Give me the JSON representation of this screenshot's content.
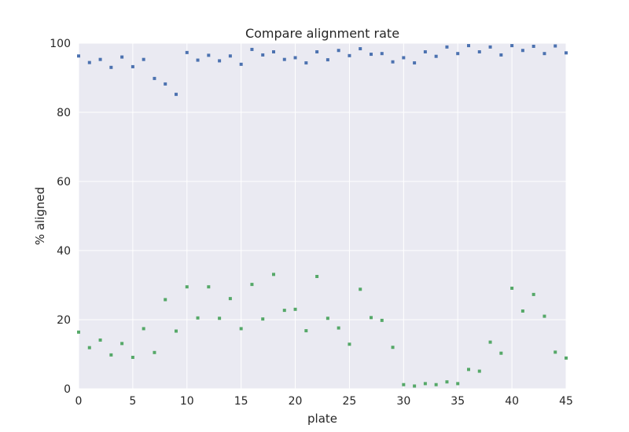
{
  "chart_data": {
    "type": "scatter",
    "title": "Compare alignment rate",
    "xlabel": "plate",
    "ylabel": "% aligned",
    "xlim": [
      0,
      45
    ],
    "ylim": [
      0,
      100
    ],
    "x_ticks": [
      0,
      5,
      10,
      15,
      20,
      25,
      30,
      35,
      40,
      45
    ],
    "y_ticks": [
      0,
      20,
      40,
      60,
      80,
      100
    ],
    "x_tick_labels": [
      "0",
      "5",
      "10",
      "15",
      "20",
      "25",
      "30",
      "35",
      "40",
      "45"
    ],
    "y_tick_labels": [
      "0",
      "20",
      "40",
      "60",
      "80",
      "100"
    ],
    "grid": true,
    "x": [
      0,
      1,
      2,
      3,
      4,
      5,
      6,
      7,
      8,
      9,
      10,
      11,
      12,
      13,
      14,
      15,
      16,
      17,
      18,
      19,
      20,
      21,
      22,
      23,
      24,
      25,
      26,
      27,
      28,
      29,
      30,
      31,
      32,
      33,
      34,
      35,
      36,
      37,
      38,
      39,
      40,
      41,
      42,
      43,
      44,
      45
    ],
    "series": [
      {
        "color": "#4c72b0",
        "values": [
          96.3,
          94.4,
          95.3,
          93.0,
          96.0,
          93.2,
          95.3,
          89.8,
          88.2,
          85.2,
          97.3,
          95.1,
          96.5,
          94.9,
          96.3,
          93.9,
          98.2,
          96.6,
          97.5,
          95.3,
          95.8,
          94.3,
          97.5,
          95.2,
          97.9,
          96.4,
          98.4,
          96.8,
          97.0,
          94.6,
          95.8,
          94.3,
          97.5,
          96.2,
          98.9,
          97.0,
          99.3,
          97.5,
          98.9,
          96.6,
          99.3,
          97.9,
          99.1,
          97.0,
          99.2,
          97.2
        ]
      },
      {
        "color": "#55a868",
        "values": [
          16.4,
          11.9,
          14.1,
          9.8,
          13.1,
          9.1,
          17.4,
          10.5,
          25.8,
          16.7,
          29.5,
          20.5,
          29.5,
          20.4,
          26.1,
          17.4,
          30.2,
          20.2,
          33.1,
          22.7,
          23.0,
          16.8,
          32.5,
          20.4,
          17.6,
          12.9,
          28.8,
          20.6,
          19.8,
          12.0,
          1.2,
          0.8,
          1.5,
          1.2,
          2.0,
          1.5,
          5.6,
          5.1,
          13.5,
          10.3,
          29.1,
          22.5,
          27.3,
          21.0,
          10.6,
          8.9
        ]
      }
    ]
  }
}
